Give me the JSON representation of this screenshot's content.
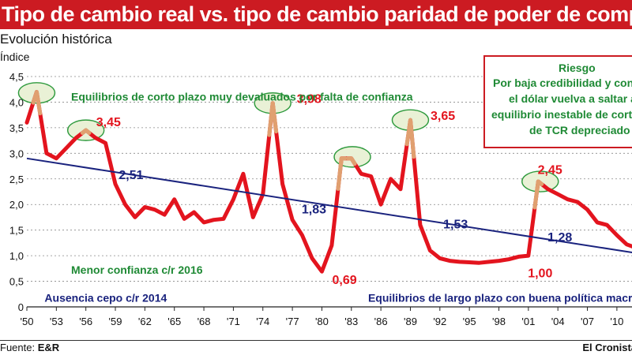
{
  "header": {
    "title": "Tipo de cambio real vs. tipo de cambio paridad de poder de compra",
    "subtitle": "Evolución histórica",
    "ylabel": "Índice"
  },
  "footer": {
    "source_prefix": "Fuente: ",
    "source_name": "E&R",
    "credit": "El Cronista"
  },
  "risk_box": {
    "title": "Riesgo",
    "line1": "Por baja credibilidad y con",
    "line2": "el dólar vuelva a saltar a",
    "line3": "equilibrio inestable de corto",
    "line4": "de TCR depreciado"
  },
  "colors": {
    "title_bg": "#cc1b22",
    "real_line": "#e3141e",
    "ppp_line": "#1a237e",
    "annotation_green": "#1f8a35",
    "ellipse_fill": "#e9f1d6",
    "peak_highlight": "#e0a070",
    "peak_label": "#e3141e",
    "trend_label": "#1a237e",
    "grid": "#888888"
  },
  "chart_data": {
    "type": "line",
    "title": "Tipo de cambio real vs. tipo de cambio paridad de poder de compra",
    "subtitle": "Evolución histórica",
    "xlabel": "",
    "ylabel": "Índice",
    "ylim": [
      0,
      4.5
    ],
    "xlim": [
      1950,
      2012.5
    ],
    "yticks": [
      "0",
      "0,5",
      "1,0",
      "1,5",
      "2,0",
      "2,5",
      "3,0",
      "3,5",
      "4,0",
      "4,5"
    ],
    "xticks": [
      {
        "year": 1950,
        "label": "'50"
      },
      {
        "year": 1953,
        "label": "'53"
      },
      {
        "year": 1956,
        "label": "'56"
      },
      {
        "year": 1959,
        "label": "'59"
      },
      {
        "year": 1962,
        "label": "'62"
      },
      {
        "year": 1965,
        "label": "'65"
      },
      {
        "year": 1968,
        "label": "'68"
      },
      {
        "year": 1971,
        "label": "'71"
      },
      {
        "year": 1974,
        "label": "'74"
      },
      {
        "year": 1977,
        "label": "'77"
      },
      {
        "year": 1980,
        "label": "'80"
      },
      {
        "year": 1983,
        "label": "'83"
      },
      {
        "year": 1986,
        "label": "'86"
      },
      {
        "year": 1989,
        "label": "'89"
      },
      {
        "year": 1992,
        "label": "'92"
      },
      {
        "year": 1995,
        "label": "'95"
      },
      {
        "year": 1998,
        "label": "'98"
      },
      {
        "year": 2001,
        "label": "'01"
      },
      {
        "year": 2004,
        "label": "'04"
      },
      {
        "year": 2007,
        "label": "'07"
      },
      {
        "year": 2010,
        "label": "'10"
      }
    ],
    "grid": true,
    "series": [
      {
        "name": "Tipo de cambio real",
        "x": [
          1950,
          1951,
          1952,
          1953,
          1954,
          1955,
          1956,
          1957,
          1958,
          1959,
          1960,
          1961,
          1962,
          1963,
          1964,
          1965,
          1966,
          1967,
          1968,
          1969,
          1970,
          1971,
          1972,
          1973,
          1974,
          1975,
          1976,
          1977,
          1978,
          1979,
          1980,
          1981,
          1982,
          1983,
          1984,
          1985,
          1986,
          1987,
          1988,
          1989,
          1990,
          1991,
          1992,
          1993,
          1994,
          1995,
          1996,
          1997,
          1998,
          1999,
          2000,
          2001,
          2002,
          2003,
          2004,
          2005,
          2006,
          2007,
          2008,
          2009,
          2010,
          2011,
          2012
        ],
        "y": [
          3.6,
          4.2,
          3.0,
          2.9,
          3.1,
          3.3,
          3.45,
          3.3,
          3.2,
          2.4,
          2.0,
          1.75,
          1.95,
          1.9,
          1.8,
          2.1,
          1.72,
          1.85,
          1.65,
          1.7,
          1.72,
          2.1,
          2.6,
          1.75,
          2.2,
          3.98,
          2.4,
          1.7,
          1.4,
          0.95,
          0.69,
          1.2,
          2.9,
          2.9,
          2.6,
          2.55,
          2.0,
          2.5,
          2.3,
          3.65,
          1.6,
          1.1,
          0.95,
          0.9,
          0.88,
          0.87,
          0.86,
          0.88,
          0.9,
          0.93,
          0.98,
          1.0,
          2.45,
          2.3,
          2.2,
          2.1,
          2.05,
          1.9,
          1.65,
          1.6,
          1.4,
          1.22,
          1.15
        ]
      },
      {
        "name": "Tipo de cambio paridad de poder de compra",
        "x": [
          1950,
          2012
        ],
        "y": [
          2.9,
          1.05
        ]
      }
    ],
    "peak_labels": [
      {
        "x": 1958.3,
        "y": 3.53,
        "label": "3,45"
      },
      {
        "x": 1978.7,
        "y": 3.98,
        "label": "3,98"
      },
      {
        "x": 1982.3,
        "y": 0.45,
        "label": "0,69"
      },
      {
        "x": 1992.3,
        "y": 3.65,
        "label": "3,65"
      },
      {
        "x": 2003.2,
        "y": 2.6,
        "label": "2,45"
      },
      {
        "x": 2002.2,
        "y": 0.58,
        "label": "1,00"
      }
    ],
    "trend_labels": [
      {
        "x": 1960.6,
        "y": 2.5,
        "label": "2,51"
      },
      {
        "x": 1979.2,
        "y": 1.83,
        "label": "1,83"
      },
      {
        "x": 1993.6,
        "y": 1.53,
        "label": "1,53"
      },
      {
        "x": 2004.2,
        "y": 1.28,
        "label": "1,28"
      }
    ],
    "annotations": [
      {
        "x": 1954.5,
        "y": 4.03,
        "label": "Equilibrios de corto plazo muy devaluados por falta de confianza",
        "color": "green"
      },
      {
        "x": 1954.5,
        "y": 0.65,
        "label": "Menor confianza c/r 2016",
        "color": "green"
      },
      {
        "x": 1951.8,
        "y": 0.1,
        "label": "Ausencia cepo c/r 2014",
        "color": "navy"
      },
      {
        "x": 1984.7,
        "y": 0.1,
        "label": "Equilibrios de largo plazo con buena política macroeconómica",
        "color": "navy"
      }
    ],
    "highlight_ellipses": [
      {
        "x": 1951,
        "y": 4.18
      },
      {
        "x": 1956,
        "y": 3.45
      },
      {
        "x": 1975,
        "y": 3.98
      },
      {
        "x": 1983.1,
        "y": 2.93
      },
      {
        "x": 1989,
        "y": 3.65
      },
      {
        "x": 2002.2,
        "y": 2.45
      }
    ]
  }
}
